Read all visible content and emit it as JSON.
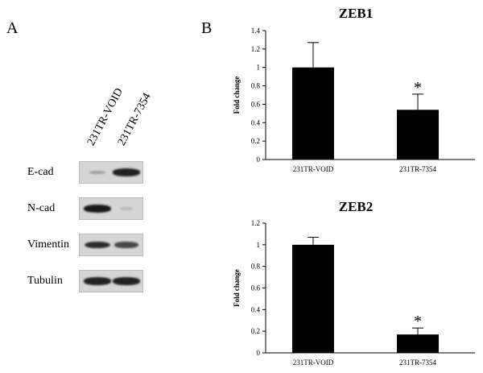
{
  "panel_a": {
    "letter": "A",
    "lanes": [
      "231TR-VOID",
      "231TR-7354"
    ],
    "rows": [
      {
        "label": "E-cad",
        "band_intensity": [
          0.25,
          0.9
        ]
      },
      {
        "label": "N-cad",
        "band_intensity": [
          0.95,
          0.12
        ]
      },
      {
        "label": "Vimentin",
        "band_intensity": [
          0.85,
          0.7
        ]
      },
      {
        "label": "Tubulin",
        "band_intensity": [
          0.9,
          0.9
        ]
      }
    ]
  },
  "panel_b": {
    "letter": "B"
  },
  "chart_data": [
    {
      "type": "bar",
      "title": "ZEB1",
      "ylabel": "Fold change",
      "categories": [
        "231TR-VOID",
        "231TR-7354"
      ],
      "values": [
        1.0,
        0.54
      ],
      "errors": [
        0.27,
        0.17
      ],
      "significance": [
        "",
        "*"
      ],
      "ylim": [
        0,
        1.4
      ],
      "yticks": [
        "0",
        "0.2",
        "0.4",
        "0.6",
        "0.8",
        "1",
        "1.2",
        "1.4"
      ],
      "ytick_values": [
        0,
        0.2,
        0.4,
        0.6,
        0.8,
        1.0,
        1.2,
        1.4
      ],
      "grid": false
    },
    {
      "type": "bar",
      "title": "ZEB2",
      "ylabel": "Fold change",
      "categories": [
        "231TR-VOID",
        "231TR-7354"
      ],
      "values": [
        1.0,
        0.17
      ],
      "errors": [
        0.07,
        0.06
      ],
      "significance": [
        "",
        "*"
      ],
      "ylim": [
        0,
        1.2
      ],
      "yticks": [
        "0",
        "0.2",
        "0.4",
        "0.6",
        "0.8",
        "1",
        "1.2"
      ],
      "ytick_values": [
        0,
        0.2,
        0.4,
        0.6,
        0.8,
        1.0,
        1.2
      ],
      "grid": false
    }
  ]
}
